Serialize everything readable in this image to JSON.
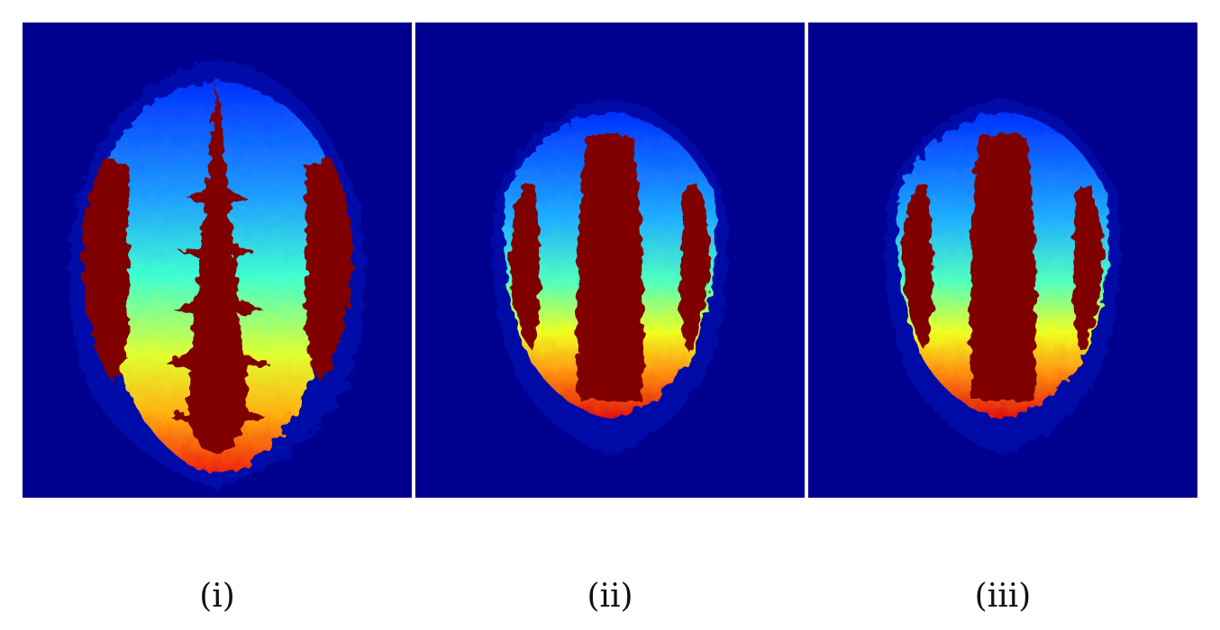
{
  "figure": {
    "panels": [
      {
        "caption": "(i)",
        "image": "fractal-basin-image"
      },
      {
        "caption": "(ii)",
        "image": "fractal-basin-image"
      },
      {
        "caption": "(iii)",
        "image": "fractal-basin-image"
      }
    ]
  },
  "colors": {
    "background": "#00008f",
    "basin": "#800000",
    "blue": "#0040ff",
    "cyan": "#30e0e0",
    "yellow": "#ffff20",
    "orange": "#ff6010",
    "red": "#e01010"
  }
}
